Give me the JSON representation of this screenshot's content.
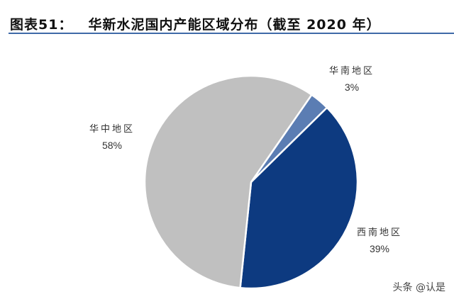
{
  "header": {
    "figure_number": "图表51：",
    "title": "华新水泥国内产能区域分布（截至 2020 年）"
  },
  "chart_data": {
    "type": "pie",
    "title": "华新水泥国内产能区域分布（截至 2020 年）",
    "categories": [
      "华南地区",
      "西南地区",
      "华中地区"
    ],
    "values": [
      3,
      39,
      58
    ],
    "unit": "%",
    "colors": [
      "#5b7db3",
      "#0d3a80",
      "#c0c0c0"
    ],
    "labels": [
      {
        "name": "华南地区",
        "pct": "3%"
      },
      {
        "name": "西南地区",
        "pct": "39%"
      },
      {
        "name": "华中地区",
        "pct": "58%"
      }
    ],
    "start_angle_deg": 34.7,
    "direction": "clockwise",
    "legend": "none"
  },
  "watermark": "头条 @认是"
}
